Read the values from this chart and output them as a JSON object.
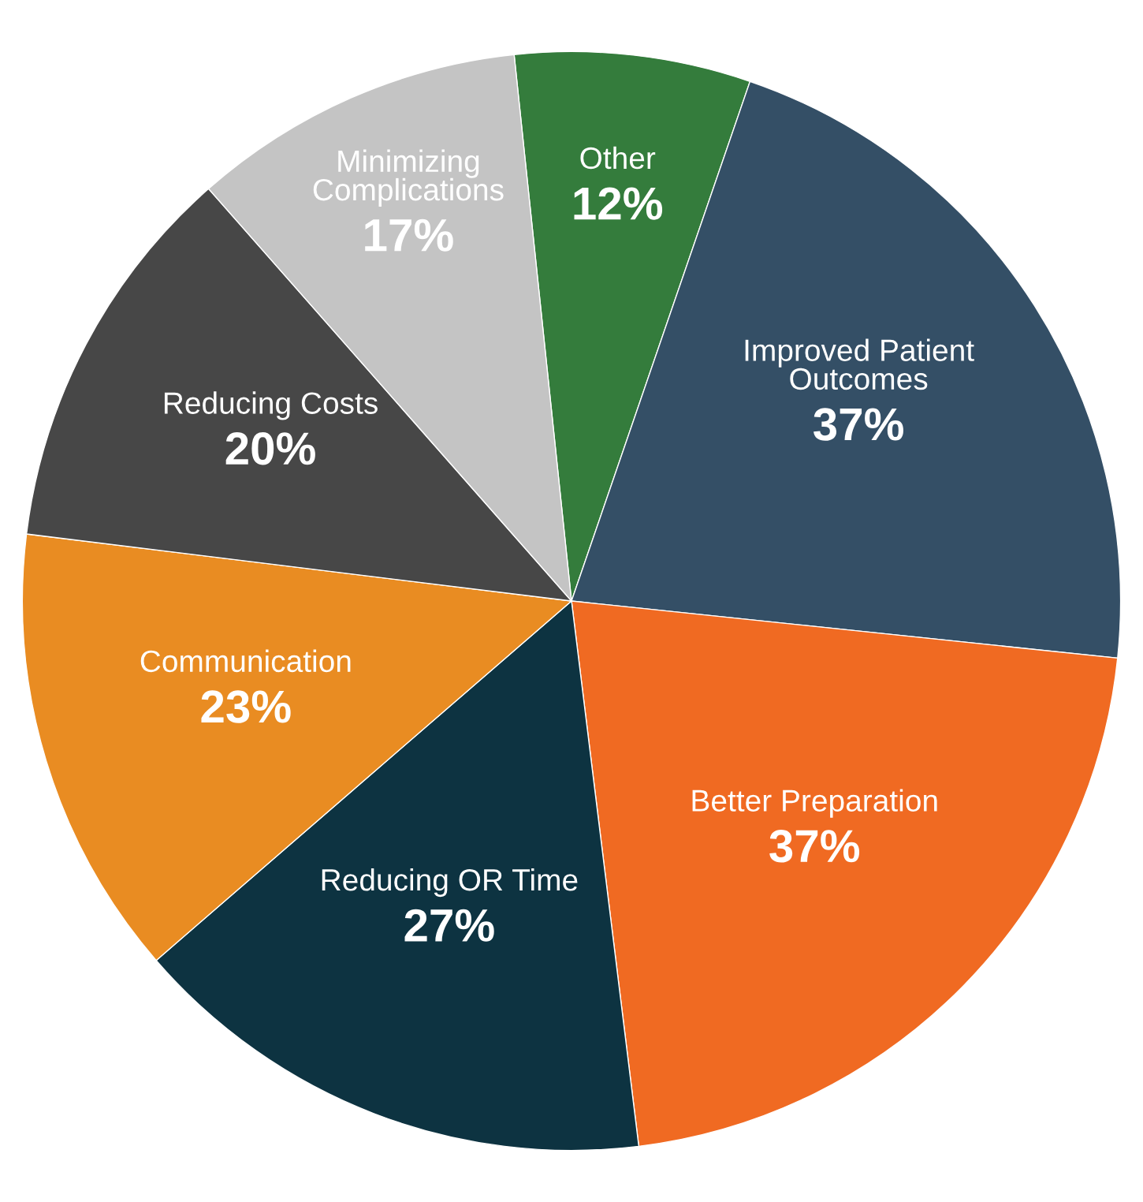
{
  "chart_data": {
    "type": "pie",
    "categories": [
      "Other",
      "Improved Patient\nOutcomes",
      "Better Preparation",
      "Reducing OR Time",
      "Communication",
      "Reducing Costs",
      "Minimizing\nComplications"
    ],
    "values": [
      12,
      37,
      37,
      27,
      23,
      20,
      17
    ],
    "value_labels": [
      "12%",
      "37%",
      "37%",
      "27%",
      "23%",
      "20%",
      "17%"
    ],
    "colors": [
      "#347c3c",
      "#344f66",
      "#f06a22",
      "#0d3341",
      "#e98c22",
      "#474747",
      "#c4c4c4"
    ],
    "legend": false
  }
}
